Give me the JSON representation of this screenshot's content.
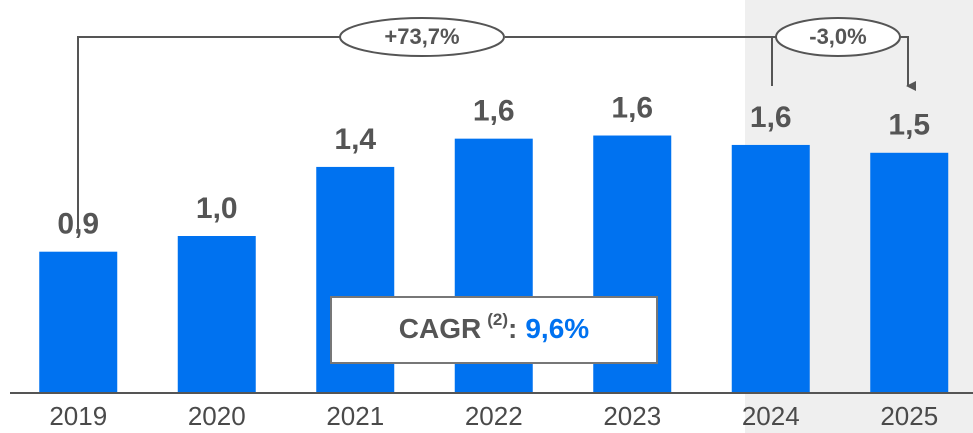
{
  "chart_data": {
    "type": "bar",
    "categories": [
      "2019",
      "2020",
      "2021",
      "2022",
      "2023",
      "2024",
      "2025"
    ],
    "values": [
      0.9,
      1.0,
      1.44,
      1.62,
      1.64,
      1.58,
      1.53
    ],
    "value_labels": [
      "0,9",
      "1,0",
      "1,4",
      "1,6",
      "1,6",
      "1,6",
      "1,5"
    ],
    "color": "#0072f0",
    "ylim": [
      0,
      2.5
    ],
    "annotations": [
      "+73,7%",
      "-3,0%"
    ],
    "cagr": {
      "label": "CAGR",
      "note": "(2)",
      "separator": ":",
      "value": "9,6%"
    }
  }
}
